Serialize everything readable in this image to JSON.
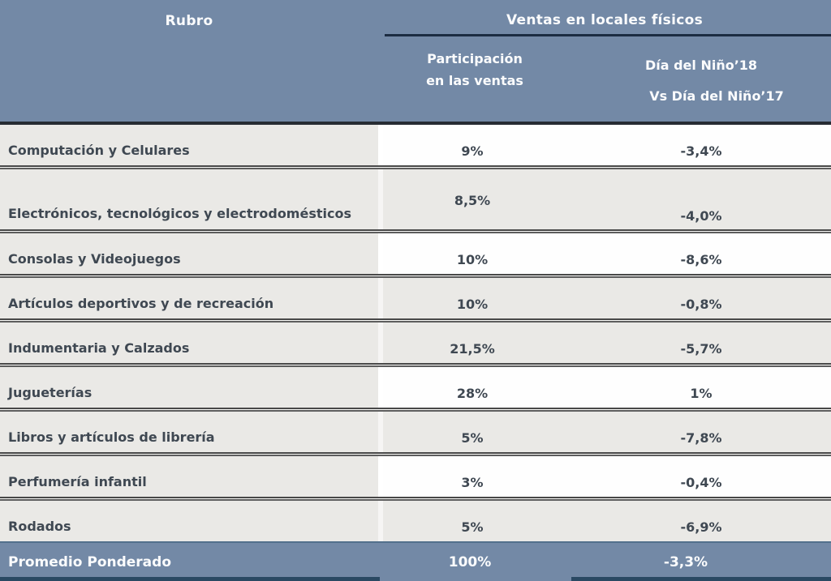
{
  "colors": {
    "header_blue": "#7389A6",
    "navy_line": "#1c2c42",
    "footer_navy_line": "#2a4963",
    "row_gray": "#EAE9E6",
    "row_white": "#FEFEFE",
    "body_text": "#3F4852",
    "header_text": "#FBFCFD"
  },
  "header": {
    "rubro": "Rubro",
    "group": "Ventas en locales físicos",
    "col2_line1": "Participación",
    "col2_line2": "en las ventas",
    "col3_line1": "Día del Niño’18",
    "col3_line2": "Vs Día del Niño’17"
  },
  "chart_data": {
    "type": "table",
    "title": "Ventas en locales físicos",
    "columns": [
      "Rubro",
      "Participación en las ventas",
      "Día del Niño’18 Vs Día del Niño’17"
    ],
    "rows": [
      [
        "Computación y Celulares",
        "9%",
        "-3,4%"
      ],
      [
        "Electrónicos, tecnológicos y electrodomésticos",
        "8,5%",
        "-4,0%"
      ],
      [
        "Consolas y Videojuegos",
        "10%",
        "-8,6%"
      ],
      [
        "Artículos deportivos y de recreación",
        "10%",
        "-0,8%"
      ],
      [
        "Indumentaria y Calzados",
        "21,5%",
        "-5,7%"
      ],
      [
        "Jugueterías",
        "28%",
        "1%"
      ],
      [
        "Libros y artículos de librería",
        "5%",
        "-7,8%"
      ],
      [
        "Perfumería infantil",
        "3%",
        "-0,4%"
      ],
      [
        "Rodados",
        "5%",
        "-6,9%"
      ]
    ],
    "footer_row": [
      "Promedio Ponderado",
      "100%",
      "-3,3%"
    ]
  }
}
